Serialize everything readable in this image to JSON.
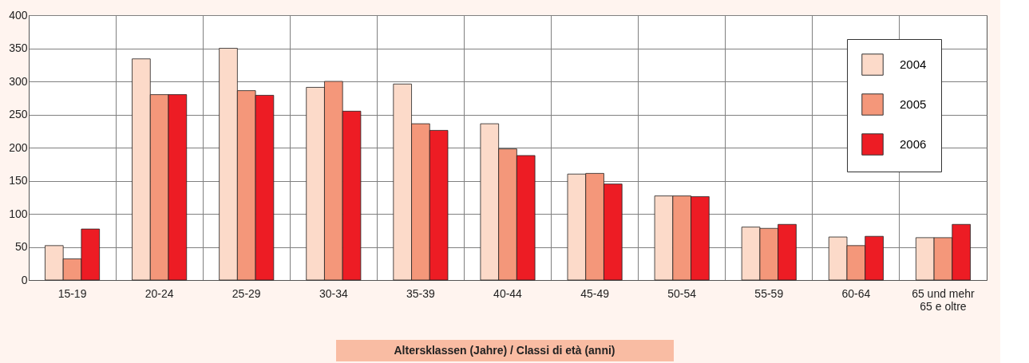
{
  "chart_data": {
    "type": "bar",
    "xlabel": "Altersklassen (Jahre) / Classi di età (anni)",
    "categories": [
      "15-19",
      "20-24",
      "25-29",
      "30-34",
      "35-39",
      "40-44",
      "45-49",
      "50-54",
      "55-59",
      "60-64",
      "65 und mehr\n65 e oltre"
    ],
    "series": [
      {
        "name": "2004",
        "color": "#fcdac9",
        "values": [
          52,
          334,
          350,
          291,
          296,
          236,
          160,
          127,
          80,
          65,
          64
        ]
      },
      {
        "name": "2005",
        "color": "#f4977a",
        "values": [
          32,
          280,
          286,
          300,
          236,
          198,
          161,
          127,
          78,
          52,
          64
        ]
      },
      {
        "name": "2006",
        "color": "#ed1c24",
        "values": [
          77,
          280,
          279,
          255,
          226,
          188,
          145,
          126,
          84,
          66,
          84
        ]
      }
    ],
    "ylim": [
      0,
      400
    ],
    "yticks": [
      0,
      50,
      100,
      150,
      200,
      250,
      300,
      350,
      400
    ],
    "grid": true,
    "legend": "top right"
  }
}
